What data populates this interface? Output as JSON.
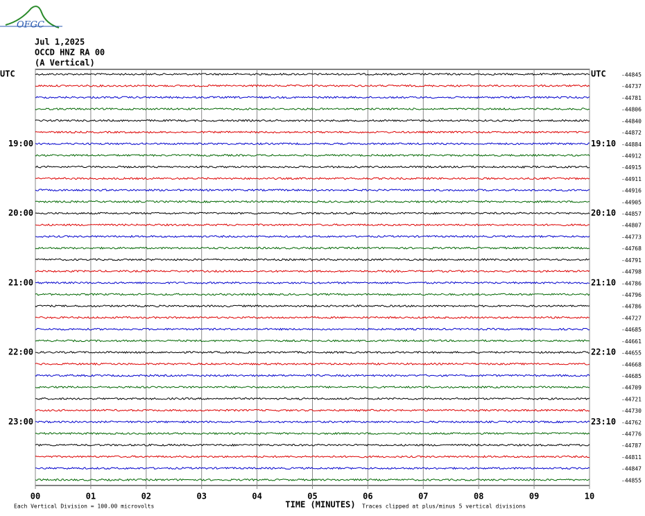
{
  "logo": "OFGC",
  "chart_data": {
    "type": "helicorder",
    "title_lines": [
      "Jul 1,2025",
      "OCCD HNZ RA 00",
      "(A Vertical)"
    ],
    "xlabel": "TIME (MINUTES)",
    "scale_note": "Each Vertical Division =  100.00 microvolts",
    "clip_note": "Traces clipped at plus/minus 5 vertical divisions",
    "xlim": [
      0,
      10
    ],
    "xticks": [
      {
        "value": 0,
        "label": "00"
      },
      {
        "value": 1,
        "label": "01"
      },
      {
        "value": 2,
        "label": "02"
      },
      {
        "value": 3,
        "label": "03"
      },
      {
        "value": 4,
        "label": "04"
      },
      {
        "value": 5,
        "label": "05"
      },
      {
        "value": 6,
        "label": "06"
      },
      {
        "value": 7,
        "label": "07"
      },
      {
        "value": 8,
        "label": "08"
      },
      {
        "value": 9,
        "label": "09"
      },
      10
    ],
    "trace_colors": [
      "#000000",
      "#dd0000",
      "#0000cc",
      "#006600"
    ],
    "left_labels": [
      "UTC",
      null,
      null,
      null,
      null,
      null,
      "19:00",
      null,
      null,
      null,
      null,
      null,
      "20:00",
      null,
      null,
      null,
      null,
      null,
      "21:00",
      null,
      null,
      null,
      null,
      null,
      "22:00",
      null,
      null,
      null,
      null,
      null,
      "23:00",
      null,
      null,
      null,
      null,
      null
    ],
    "right_labels": [
      "UTC",
      null,
      null,
      null,
      null,
      null,
      "19:10",
      null,
      null,
      null,
      null,
      null,
      "20:10",
      null,
      null,
      null,
      null,
      null,
      "21:10",
      null,
      null,
      null,
      null,
      null,
      "22:10",
      null,
      null,
      null,
      null,
      null,
      "23:10",
      null,
      null,
      null,
      null,
      null
    ],
    "offsets": [
      -44845,
      -44737,
      -44781,
      -44806,
      -44840,
      -44872,
      -44884,
      -44912,
      -44915,
      -44911,
      -44916,
      -44905,
      -44857,
      -44807,
      -44773,
      -44768,
      -44791,
      -44798,
      -44786,
      -44796,
      -44786,
      -44727,
      -44685,
      -44661,
      -44655,
      -44668,
      -44685,
      -44709,
      -44721,
      -44730,
      -44762,
      -44776,
      -44787,
      -44811,
      -44847,
      -44855
    ]
  }
}
